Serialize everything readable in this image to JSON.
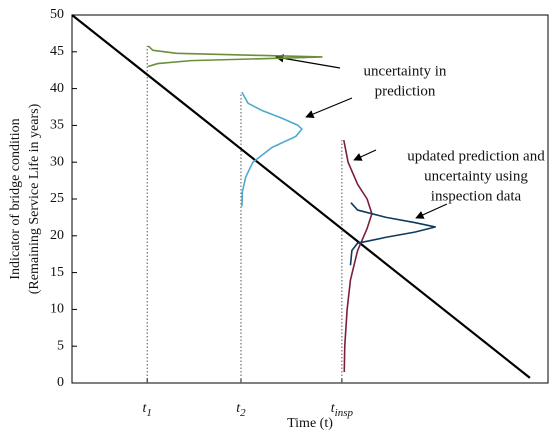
{
  "chart_data": {
    "type": "line",
    "xlabel": "Time (t)",
    "ylabel": [
      "Indicator of bridge condition",
      "(Remaining Service Life in years)"
    ],
    "xlim": [
      0,
      1
    ],
    "ylim": [
      0,
      50
    ],
    "yticks": [
      0,
      5,
      10,
      15,
      20,
      25,
      30,
      35,
      40,
      45,
      50
    ],
    "xticks": [
      {
        "value": 0.158,
        "label": "t1"
      },
      {
        "value": 0.355,
        "label": "t2"
      },
      {
        "value": 0.567,
        "label": "tinsp"
      }
    ],
    "series": [
      {
        "color": "#000000",
        "x": [
          0,
          0.962
        ],
        "y": [
          50,
          0.7
        ]
      },
      {
        "color": "#6b8e3a",
        "x": [
          0.16,
          0.17,
          0.22,
          0.4,
          0.525,
          0.42,
          0.25,
          0.18,
          0.16
        ],
        "y": [
          45.8,
          45.2,
          44.8,
          44.5,
          44.3,
          44.1,
          43.8,
          43.4,
          43.0
        ]
      },
      {
        "color": "#4fa8d0",
        "x": [
          0.357,
          0.37,
          0.4,
          0.44,
          0.475,
          0.483,
          0.47,
          0.42,
          0.38,
          0.365,
          0.358,
          0.357
        ],
        "y": [
          39.5,
          38,
          37,
          36,
          35,
          34.5,
          33.5,
          32,
          30,
          28,
          26,
          24
        ]
      },
      {
        "color": "#7a1f3a",
        "x": [
          0.571,
          0.58,
          0.6,
          0.62,
          0.63,
          0.62,
          0.6,
          0.585,
          0.578,
          0.573,
          0.572
        ],
        "y": [
          33,
          30,
          27,
          25,
          23,
          21,
          18,
          14,
          10,
          5,
          1.5
        ]
      },
      {
        "color": "#0d3b5e",
        "x": [
          0.586,
          0.6,
          0.66,
          0.72,
          0.763,
          0.72,
          0.66,
          0.6,
          0.588,
          0.585
        ],
        "y": [
          24.5,
          23.5,
          22.5,
          21.8,
          21.2,
          20.5,
          19.8,
          19,
          18,
          16
        ]
      }
    ],
    "annotations": [
      [
        "uncertainty in",
        "prediction"
      ],
      [
        "updated prediction and",
        "uncertainty using",
        "inspection data"
      ]
    ]
  }
}
